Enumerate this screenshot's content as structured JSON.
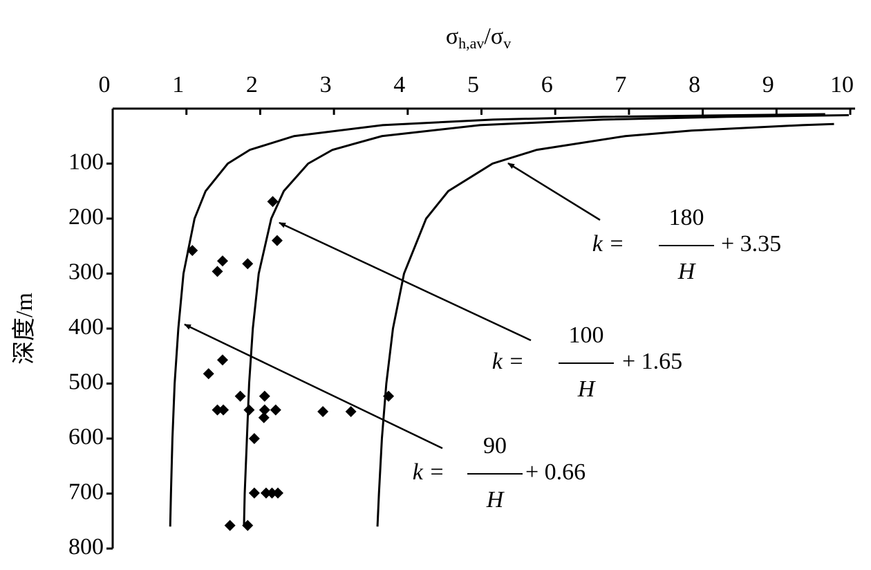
{
  "chart_data": {
    "type": "scatter",
    "x_label": {
      "sym1": "σ",
      "sub1": "h,av",
      "sym2": "/σ",
      "sub2": "v"
    },
    "y_label": "深度/m",
    "xlim": [
      0,
      10
    ],
    "xticks": [
      0,
      1,
      2,
      3,
      4,
      5,
      6,
      7,
      8,
      9,
      10
    ],
    "ylim": [
      0,
      800
    ],
    "yticks": [
      100,
      200,
      300,
      400,
      500,
      600,
      700,
      800
    ],
    "color": "#000000",
    "points": {
      "x": [
        1.08,
        1.49,
        1.42,
        1.83,
        2.17,
        2.23,
        1.49,
        1.3,
        1.73,
        2.06,
        1.42,
        1.5,
        1.85,
        2.06,
        2.05,
        2.21,
        2.85,
        3.23,
        3.74,
        1.92,
        1.92,
        2.08,
        2.16,
        2.24,
        1.59,
        1.83
      ],
      "y": [
        258,
        277,
        296,
        282,
        169,
        240,
        457,
        482,
        523,
        523,
        548,
        548,
        548,
        548,
        562,
        548,
        551,
        551,
        523,
        600,
        699,
        699,
        699,
        699,
        758,
        758
      ]
    },
    "curves": [
      {
        "x": [
          9.66,
          6.66,
          5.16,
          3.66,
          2.46,
          1.86,
          1.56,
          1.26,
          1.11,
          0.96,
          0.89,
          0.84,
          0.81,
          0.79,
          0.78
        ],
        "y": [
          10,
          15,
          20,
          30,
          50,
          75,
          100,
          150,
          200,
          300,
          400,
          500,
          600,
          700,
          760
        ]
      },
      {
        "x": [
          9.98,
          8.32,
          6.65,
          4.98,
          3.65,
          2.98,
          2.65,
          2.32,
          2.15,
          1.98,
          1.9,
          1.85,
          1.82,
          1.79,
          1.78
        ],
        "y": [
          12,
          15,
          20,
          30,
          50,
          75,
          100,
          150,
          200,
          300,
          400,
          500,
          600,
          700,
          760
        ]
      },
      {
        "x": [
          9.78,
          9.35,
          7.85,
          6.95,
          5.75,
          5.15,
          4.55,
          4.25,
          3.95,
          3.8,
          3.71,
          3.65,
          3.61,
          3.59
        ],
        "y": [
          28,
          30,
          40,
          50,
          75,
          100,
          150,
          200,
          300,
          400,
          500,
          600,
          700,
          760
        ]
      }
    ],
    "annotations": [
      {
        "k": "k =",
        "num": "90",
        "den": "H",
        "rest": "+ 0.66"
      },
      {
        "k": "k =",
        "num": "100",
        "den": "H",
        "rest": "+ 1.65"
      },
      {
        "k": "k =",
        "num": "180",
        "den": "H",
        "rest": "+ 3.35"
      }
    ]
  }
}
